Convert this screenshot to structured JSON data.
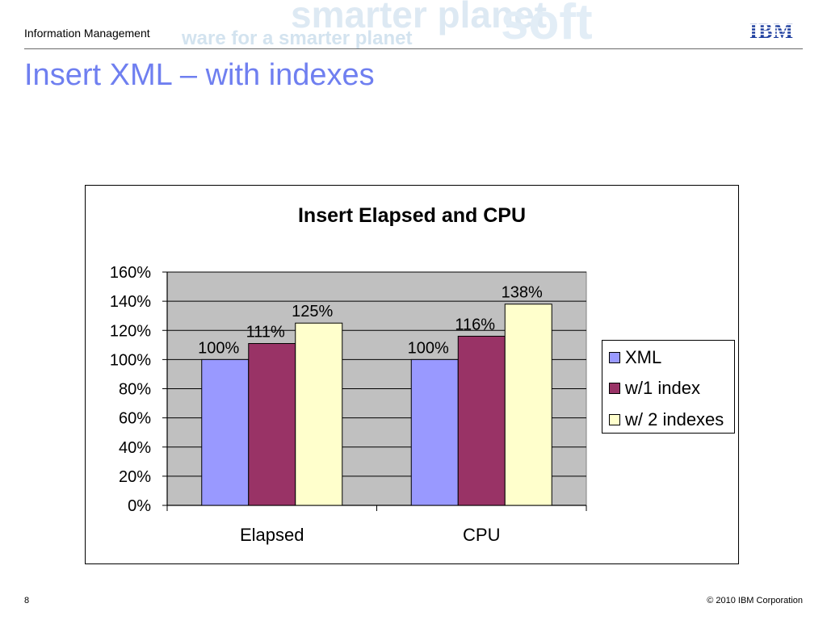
{
  "header": {
    "section": "Information Management",
    "logo_text": "IBM",
    "watermark_text": "ware for a smarter planet"
  },
  "slide": {
    "title": "Insert XML – with indexes"
  },
  "footer": {
    "page_number": "8",
    "copyright": "© 2010 IBM Corporation"
  },
  "colors": {
    "title": "#6f7ff0",
    "plot_bg": "#c0c0c0",
    "xml": "#9999ff",
    "w1": "#993366",
    "w2": "#ffffcc"
  },
  "chart_data": {
    "type": "bar",
    "title": "Insert Elapsed and CPU",
    "categories": [
      "Elapsed",
      "CPU"
    ],
    "series": [
      {
        "name": "XML",
        "values": [
          100,
          100
        ],
        "labels": [
          "100%",
          "100%"
        ],
        "color": "#9999ff"
      },
      {
        "name": "w/1 index",
        "values": [
          111,
          116
        ],
        "labels": [
          "111%",
          "116%"
        ],
        "color": "#993366"
      },
      {
        "name": "w/ 2 indexes",
        "values": [
          125,
          138
        ],
        "labels": [
          "125%",
          "138%"
        ],
        "color": "#ffffcc"
      }
    ],
    "y_ticks": [
      "0%",
      "20%",
      "40%",
      "60%",
      "80%",
      "100%",
      "120%",
      "140%",
      "160%"
    ],
    "ylim": [
      0,
      160
    ],
    "grid": true,
    "legend_position": "right"
  }
}
